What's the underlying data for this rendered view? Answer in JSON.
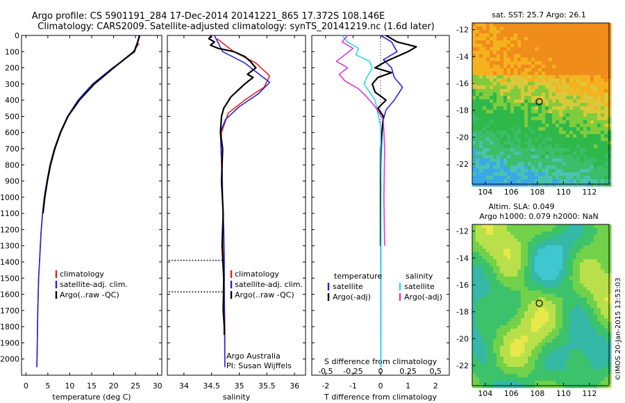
{
  "figure": {
    "title_line1": "Argo profile: CS 5901191_284 17-Dec-2014 20141221_865 17.372S 108.146E",
    "title_line2": "Climatology: CARS2009. Satellite-adjusted climatology: synTS_20141219.nc (1.6d later)",
    "timestamp": "©IMOS 20-Jan-2015 13:53:03",
    "colors": {
      "climatology": "#e8201c",
      "satellite": "#2323d8",
      "argo": "#000000",
      "salinity_satellite": "#22dde8",
      "salinity_argo": "#dd33dd"
    }
  },
  "chart_data": [
    {
      "type": "line",
      "panel": "temperature",
      "xlabel": "temperature (deg C)",
      "ylabel": "",
      "xlim": [
        -1,
        31
      ],
      "ylim": [
        2100,
        0
      ],
      "xticks": [
        0,
        5,
        10,
        15,
        20,
        25,
        30
      ],
      "yticks": [
        0,
        100,
        200,
        300,
        400,
        500,
        600,
        700,
        800,
        900,
        1000,
        1100,
        1200,
        1300,
        1400,
        1500,
        1600,
        1700,
        1800,
        1900,
        2000
      ],
      "legend": [
        "climatology",
        "satellite-adj. clim.",
        "Argo(..raw -QC)"
      ],
      "series": [
        {
          "name": "climatology",
          "style": "climatology",
          "x": [
            25.8,
            24.5,
            20,
            15.5,
            12,
            9.5,
            7.8,
            6.5,
            5.5,
            4.8,
            4.2,
            3.8,
            3.5,
            3.3,
            3.1,
            2.9,
            2.8,
            2.7,
            2.6,
            2.5
          ],
          "y": [
            50,
            100,
            200,
            300,
            400,
            500,
            600,
            700,
            800,
            900,
            1000,
            1100,
            1200,
            1300,
            1400,
            1500,
            1600,
            1700,
            1900,
            2050
          ]
        },
        {
          "name": "satellite-adj. clim.",
          "style": "satellite",
          "x": [
            26,
            24.8,
            19.8,
            15.2,
            11.9,
            9.5,
            7.8,
            6.5,
            5.5,
            4.8,
            4.2,
            3.8,
            3.5,
            3.3,
            3.1,
            2.9,
            2.8,
            2.7,
            2.6,
            2.5
          ],
          "y": [
            0,
            100,
            200,
            300,
            400,
            500,
            600,
            700,
            800,
            900,
            1000,
            1100,
            1200,
            1300,
            1400,
            1500,
            1600,
            1700,
            1900,
            2050
          ]
        },
        {
          "name": "Argo(..raw -QC)",
          "style": "argo",
          "x": [
            25.9,
            25.5,
            24.7,
            20,
            15.6,
            12.2,
            9.6,
            7.9,
            6.6,
            5.6,
            4.9,
            4.3,
            3.9
          ],
          "y": [
            0,
            40,
            100,
            200,
            300,
            400,
            500,
            600,
            700,
            800,
            900,
            1000,
            1100
          ]
        }
      ]
    },
    {
      "type": "line",
      "panel": "salinity",
      "xlabel": "salinity",
      "ylabel": "",
      "xlim": [
        33.7,
        36.2
      ],
      "ylim": [
        2100,
        0
      ],
      "xticks": [
        34,
        34.5,
        35,
        35.5,
        36
      ],
      "legend": [
        "climatology",
        "satellite-adj. clim.",
        "Argo(..raw -QC)"
      ],
      "annotation": [
        "Argo Australia",
        "PI: Susan Wijffels"
      ],
      "series": [
        {
          "name": "climatology",
          "style": "climatology",
          "x": [
            34.6,
            34.9,
            35.3,
            35.55,
            35.45,
            35.1,
            34.8,
            34.68,
            34.67,
            34.68,
            34.7,
            34.71,
            34.72,
            34.73,
            34.74,
            34.74
          ],
          "y": [
            20,
            100,
            170,
            250,
            320,
            400,
            480,
            600,
            700,
            800,
            1000,
            1200,
            1400,
            1600,
            1800,
            2050
          ]
        },
        {
          "name": "satellite-adj. clim.",
          "style": "satellite",
          "x": [
            34.55,
            34.7,
            35.1,
            35.4,
            35.55,
            35.35,
            35.0,
            34.75,
            34.66,
            34.67,
            34.69,
            34.7,
            34.72,
            34.73,
            34.73,
            34.74
          ],
          "y": [
            0,
            100,
            170,
            250,
            290,
            360,
            440,
            520,
            600,
            700,
            800,
            1000,
            1200,
            1400,
            1600,
            2050
          ]
        },
        {
          "name": "Argo(..raw -QC)",
          "style": "argo",
          "x": [
            34.5,
            34.45,
            34.55,
            34.48,
            34.62,
            34.9,
            35.1,
            35.2,
            35.3,
            35.15,
            35.25,
            35.1,
            34.85,
            34.72,
            34.68,
            34.66,
            34.7,
            34.68,
            34.71,
            34.69,
            34.72,
            34.71,
            34.73,
            34.73
          ],
          "y": [
            0,
            20,
            40,
            60,
            80,
            100,
            130,
            160,
            200,
            240,
            260,
            300,
            380,
            450,
            500,
            600,
            700,
            900,
            1100,
            1300,
            1500,
            1700,
            1800,
            1850
          ]
        }
      ],
      "qc_markers_dotted": [
        {
          "y": 1390,
          "x_from": 33.7,
          "x_to": 34.72
        },
        {
          "y": 1585,
          "x_from": 33.7,
          "x_to": 34.72
        }
      ]
    },
    {
      "type": "line",
      "panel": "difference",
      "xlabel": "T difference from climatology",
      "xlabel_top": "S difference from climatology",
      "ylabel": "",
      "xlim": [
        -2.5,
        2.5
      ],
      "ylim": [
        2100,
        0
      ],
      "xticks": [
        -2,
        -1,
        0,
        1,
        2
      ],
      "xticks_s": [
        -0.5,
        -0.25,
        0,
        0.25,
        0.5
      ],
      "legend_temperature": [
        "temperature",
        "satellite",
        "Argo(-adj)"
      ],
      "legend_salinity": [
        "salinity",
        "satellite",
        "Argo(-adj)"
      ],
      "series": [
        {
          "name": "temperature satellite",
          "style": "satellite",
          "x": [
            0,
            0.4,
            0.6,
            0.1,
            0.4,
            0.5,
            0.8,
            0.5,
            0.2,
            0.1,
            0.05,
            0.02,
            0.02,
            0.01,
            0.01,
            0.01
          ],
          "y": [
            0,
            40,
            100,
            150,
            200,
            260,
            320,
            400,
            460,
            520,
            600,
            800,
            1000,
            1200,
            1500,
            2050
          ]
        },
        {
          "name": "temperature Argo(-adj)",
          "style": "argo",
          "x": [
            0.2,
            0.6,
            1.3,
            1.0,
            0.2,
            -0.2,
            0.4,
            -0.1,
            -0.3,
            -0.2,
            0.2,
            -0.1,
            0.1,
            0.0,
            0.0
          ],
          "y": [
            0,
            40,
            70,
            100,
            160,
            200,
            230,
            260,
            300,
            350,
            400,
            450,
            500,
            700,
            1300
          ]
        },
        {
          "name": "salinity satellite",
          "style": "salinity_satellite",
          "x": [
            -1.4,
            -1.2,
            -0.8,
            -0.9,
            -0.4,
            -0.3,
            -0.5,
            -0.6,
            -0.4,
            -0.2,
            -0.1,
            0,
            0.02,
            0.01
          ],
          "y": [
            0,
            40,
            80,
            120,
            160,
            200,
            260,
            300,
            350,
            400,
            480,
            560,
            900,
            2050
          ]
        },
        {
          "name": "salinity Argo(-adj)",
          "style": "salinity_argo",
          "x": [
            -1.2,
            -1.4,
            -1.0,
            -1.3,
            -1.6,
            -1.2,
            -1.5,
            -1.3,
            -0.8,
            -0.5,
            -0.2,
            0.1,
            0.15,
            0.12,
            0.15
          ],
          "y": [
            0,
            40,
            80,
            120,
            160,
            200,
            240,
            280,
            330,
            380,
            440,
            520,
            700,
            1000,
            1300
          ]
        }
      ]
    },
    {
      "type": "heatmap",
      "panel": "sst_map",
      "title": "sat. SST: 25.7 Argo: 26.1",
      "xlim": [
        103,
        113.5
      ],
      "ylim": [
        -23.5,
        -11.5
      ],
      "xticks": [
        104,
        106,
        108,
        110,
        112
      ],
      "yticks": [
        -12,
        -14,
        -16,
        -18,
        -20,
        -22
      ],
      "float_position": {
        "lon": 108.146,
        "lat": -17.372
      }
    },
    {
      "type": "heatmap",
      "panel": "sla_map",
      "title_line1": "Altim. SLA: 0.049",
      "title_line2": "Argo h1000: 0.079 h2000: NaN",
      "xlim": [
        103,
        113.5
      ],
      "ylim": [
        -23.5,
        -11.5
      ],
      "xticks": [
        104,
        106,
        108,
        110,
        112
      ],
      "yticks": [
        -12,
        -14,
        -16,
        -18,
        -20,
        -22
      ],
      "float_position": {
        "lon": 108.146,
        "lat": -17.372
      }
    }
  ]
}
